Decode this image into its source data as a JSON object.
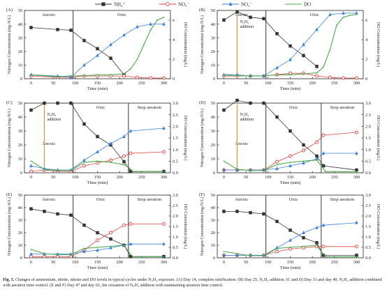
{
  "legend": [
    {
      "label": "NH₄⁺",
      "marker": "square",
      "color": "#333333"
    },
    {
      "label": "NO₂⁻",
      "marker": "circle",
      "color": "#e04040"
    },
    {
      "label": "NO₃⁻",
      "marker": "triangle",
      "color": "#3a7fd8"
    },
    {
      "label": "DO",
      "marker": "line",
      "color": "#4aa84a"
    }
  ],
  "axis_labels": {
    "ylabel_left": "Nitrogen Concentration (mg-N/L)",
    "ylabel_right": "DO Concentration (mg/L)",
    "xlabel": "Time (min)"
  },
  "caption": {
    "label": "Fig. 3.",
    "text": "Changes of ammonium, nitrite, nitrate and DO levels in typical cycles under N₂H₄ exposure. (A) Day 14, complete nitrification. (B) Day 25, N₂H₄ addition. (C and D) Day 31 and day 40, N₂H₄ addition combined with aeration time control. (E and F) Day 47 and day 65, the cessation of N₂H₄ addition with maintaining aeration time control."
  },
  "chart_data": [
    {
      "panel": "(A)",
      "type": "line",
      "xlabel": "Time (min)",
      "xlim": [
        -15,
        315
      ],
      "xticks": [
        0,
        50,
        100,
        150,
        200,
        250,
        300
      ],
      "ylim": [
        0,
        50
      ],
      "yticks": [
        0,
        10,
        20,
        30,
        40,
        50
      ],
      "y2lim": [
        0,
        7
      ],
      "y2ticks": [
        0,
        2,
        4,
        6
      ],
      "phases": [
        {
          "label": "Anoxic",
          "x": [
            -15,
            95
          ]
        },
        {
          "label": "Oxic",
          "x": [
            95,
            315
          ]
        }
      ],
      "series": [
        {
          "name": "NH₄⁺",
          "x": [
            0,
            60,
            90,
            120,
            150,
            180,
            210
          ],
          "y": [
            37.5,
            36,
            35.5,
            28,
            22,
            15,
            3
          ]
        },
        {
          "name": "NO₂⁻",
          "x": [
            0,
            60,
            90,
            120,
            150,
            180,
            210,
            240,
            270,
            300
          ],
          "y": [
            2,
            1,
            1,
            2,
            2,
            2,
            2,
            1,
            0.5,
            0.5
          ]
        },
        {
          "name": "NO₃⁻",
          "x": [
            0,
            60,
            90,
            120,
            150,
            180,
            210,
            240,
            270,
            300
          ],
          "y": [
            3,
            2,
            1,
            10,
            17,
            25,
            32,
            38,
            40,
            40
          ]
        },
        {
          "name": "DO",
          "axis": "right",
          "x": [
            0,
            30,
            60,
            90,
            120,
            150,
            180,
            210,
            225,
            240,
            255,
            270,
            285,
            300
          ],
          "y": [
            0.4,
            0.3,
            0.2,
            0.3,
            0.3,
            0.4,
            0.4,
            0.5,
            1.0,
            2.0,
            3.5,
            5.0,
            6.0,
            6.3
          ]
        }
      ]
    },
    {
      "panel": "(B)",
      "type": "line",
      "xlabel": "Time (min)",
      "xlim": [
        -15,
        315
      ],
      "xticks": [
        0,
        50,
        100,
        150,
        200,
        250,
        300
      ],
      "ylim": [
        0,
        50
      ],
      "yticks": [
        0,
        10,
        20,
        30,
        40,
        50
      ],
      "y2lim": [
        0,
        7
      ],
      "y2ticks": [
        0,
        2,
        4,
        6
      ],
      "phases": [
        {
          "label": "Anoxic",
          "x": [
            -15,
            95
          ]
        },
        {
          "label": "Oxic",
          "x": [
            95,
            315
          ]
        }
      ],
      "annotations": [
        {
          "text": "N₂H₄",
          "x": 30
        },
        {
          "text": "addition",
          "x": 30
        }
      ],
      "series": [
        {
          "name": "NH₄⁺",
          "x": [
            0,
            30,
            60,
            90,
            120,
            150,
            180,
            210
          ],
          "y": [
            43,
            49,
            45,
            44,
            33,
            24,
            17,
            9
          ]
        },
        {
          "name": "NO₂⁻",
          "x": [
            0,
            30,
            60,
            90,
            120,
            150,
            180,
            210,
            240,
            270,
            300
          ],
          "y": [
            2,
            2,
            2,
            2,
            3,
            4,
            4,
            2,
            1,
            0.5,
            0.5
          ]
        },
        {
          "name": "NO₃⁻",
          "x": [
            0,
            30,
            60,
            90,
            120,
            150,
            180,
            210,
            240,
            270,
            300
          ],
          "y": [
            3,
            3,
            2,
            2,
            8,
            14,
            25,
            36,
            47,
            48,
            48
          ]
        },
        {
          "name": "DO",
          "axis": "right",
          "x": [
            0,
            30,
            60,
            90,
            120,
            150,
            180,
            210,
            225,
            240,
            255,
            270,
            285,
            300
          ],
          "y": [
            0.4,
            0.3,
            0.3,
            0.3,
            0.4,
            0.4,
            0.5,
            0.6,
            1.2,
            3.0,
            5.5,
            6.3,
            6.5,
            6.6
          ]
        }
      ]
    },
    {
      "panel": "(C)",
      "type": "line",
      "xlabel": "Time (min)",
      "xlim": [
        -15,
        315
      ],
      "xticks": [
        0,
        50,
        100,
        150,
        200,
        250,
        300
      ],
      "ylim": [
        0,
        50
      ],
      "yticks": [
        0,
        10,
        20,
        30,
        40,
        50
      ],
      "y2lim": [
        0,
        3.0
      ],
      "y2ticks": [
        0.0,
        0.5,
        1.0,
        1.5,
        2.0,
        2.5,
        3.0
      ],
      "phases": [
        {
          "label": "Anoxic",
          "x": [
            -15,
            95
          ]
        },
        {
          "label": "Oxic",
          "x": [
            95,
            220
          ]
        },
        {
          "label": "Stop aeration",
          "x": [
            220,
            315
          ]
        }
      ],
      "annotations": [
        {
          "text": "N₂H₄",
          "x": 30
        },
        {
          "text": "addition",
          "x": 30
        }
      ],
      "series": [
        {
          "name": "NH₄⁺",
          "x": [
            0,
            30,
            60,
            90,
            120,
            150,
            180,
            210,
            225,
            300
          ],
          "y": [
            45,
            50,
            50,
            50,
            35,
            26,
            20,
            8,
            1,
            1
          ]
        },
        {
          "name": "NO₂⁻",
          "x": [
            0,
            30,
            60,
            90,
            120,
            150,
            180,
            210,
            225,
            300
          ],
          "y": [
            1,
            2,
            1,
            1,
            5,
            7,
            9,
            12,
            14,
            15
          ]
        },
        {
          "name": "NO₃⁻",
          "x": [
            0,
            30,
            60,
            90,
            120,
            150,
            180,
            210,
            225,
            300
          ],
          "y": [
            5,
            3,
            2,
            2,
            9,
            15,
            21,
            26,
            30,
            32
          ]
        },
        {
          "name": "DO",
          "axis": "right",
          "x": [
            0,
            30,
            60,
            90,
            120,
            150,
            180,
            210,
            220,
            230,
            300
          ],
          "y": [
            0.5,
            0.15,
            0.1,
            0.1,
            0.45,
            0.5,
            0.45,
            0.35,
            0.25,
            0.05,
            0.05
          ]
        }
      ]
    },
    {
      "panel": "(D)",
      "type": "line",
      "xlabel": "Time (min)",
      "xlim": [
        -15,
        315
      ],
      "xticks": [
        0,
        50,
        100,
        150,
        200,
        250,
        300
      ],
      "ylim": [
        0,
        50
      ],
      "yticks": [
        0,
        10,
        20,
        30,
        40,
        50
      ],
      "y2lim": [
        0,
        3.0
      ],
      "y2ticks": [
        0.0,
        0.5,
        1.0,
        1.5,
        2.0,
        2.5,
        3.0
      ],
      "phases": [
        {
          "label": "Anoxic",
          "x": [
            -15,
            95
          ]
        },
        {
          "label": "Oxic",
          "x": [
            95,
            220
          ]
        },
        {
          "label": "Stop aeration",
          "x": [
            220,
            315
          ]
        }
      ],
      "annotations": [
        {
          "text": "N₂H₄",
          "x": 30
        },
        {
          "text": "addition",
          "x": 30
        }
      ],
      "series": [
        {
          "name": "NH₄⁺",
          "x": [
            0,
            30,
            60,
            90,
            120,
            150,
            180,
            210,
            225,
            300
          ],
          "y": [
            45,
            52,
            50,
            50,
            40,
            30,
            20,
            12,
            5,
            2
          ]
        },
        {
          "name": "NO₂⁻",
          "x": [
            0,
            30,
            60,
            90,
            120,
            150,
            180,
            210,
            225,
            300
          ],
          "y": [
            2,
            2,
            2,
            2,
            8,
            12,
            16,
            22,
            27,
            29
          ]
        },
        {
          "name": "NO₃⁻",
          "x": [
            0,
            30,
            60,
            90,
            120,
            150,
            180,
            210,
            225,
            300
          ],
          "y": [
            2,
            2,
            2,
            2,
            3,
            5,
            7,
            10,
            14,
            14
          ]
        },
        {
          "name": "DO",
          "axis": "right",
          "x": [
            0,
            30,
            60,
            90,
            120,
            150,
            180,
            210,
            220,
            230,
            300
          ],
          "y": [
            0.5,
            0.15,
            0.1,
            0.1,
            0.35,
            0.45,
            0.5,
            0.55,
            0.3,
            0.05,
            0.05
          ]
        }
      ]
    },
    {
      "panel": "(E)",
      "type": "line",
      "xlabel": "Time (min)",
      "xlim": [
        -15,
        315
      ],
      "xticks": [
        0,
        50,
        100,
        150,
        200,
        250,
        300
      ],
      "ylim": [
        0,
        50
      ],
      "yticks": [
        0,
        10,
        20,
        30,
        40,
        50
      ],
      "y2lim": [
        0,
        3.0
      ],
      "y2ticks": [
        0.0,
        0.5,
        1.0,
        1.5,
        2.0,
        2.5,
        3.0
      ],
      "phases": [
        {
          "label": "Anoxic",
          "x": [
            -15,
            95
          ]
        },
        {
          "label": "Oxic",
          "x": [
            95,
            220
          ]
        },
        {
          "label": "Stop aeration",
          "x": [
            220,
            315
          ]
        }
      ],
      "series": [
        {
          "name": "NH₄⁺",
          "x": [
            0,
            30,
            60,
            90,
            120,
            150,
            180,
            210,
            225,
            300
          ],
          "y": [
            39,
            37,
            35,
            34,
            26,
            20,
            15,
            10,
            1,
            1
          ]
        },
        {
          "name": "NO₂⁻",
          "x": [
            0,
            30,
            60,
            90,
            120,
            150,
            180,
            210,
            225,
            300
          ],
          "y": [
            1,
            1,
            1,
            1,
            6,
            14,
            20,
            26,
            27,
            27
          ]
        },
        {
          "name": "NO₃⁻",
          "x": [
            0,
            30,
            60,
            90,
            120,
            150,
            180,
            210,
            225,
            300
          ],
          "y": [
            3,
            3,
            3,
            3,
            5,
            6,
            8,
            10,
            11,
            11
          ]
        },
        {
          "name": "DO",
          "axis": "right",
          "x": [
            0,
            30,
            60,
            90,
            120,
            150,
            180,
            210,
            220,
            230,
            300
          ],
          "y": [
            0.4,
            0.2,
            0.15,
            0.15,
            0.45,
            0.5,
            0.55,
            0.6,
            0.3,
            0.05,
            0.05
          ]
        }
      ]
    },
    {
      "panel": "(F)",
      "type": "line",
      "xlabel": "Time (min)",
      "xlim": [
        -15,
        315
      ],
      "xticks": [
        0,
        50,
        100,
        150,
        200,
        250,
        300
      ],
      "ylim": [
        0,
        50
      ],
      "yticks": [
        0,
        10,
        20,
        30,
        40,
        50
      ],
      "y2lim": [
        0,
        3.0
      ],
      "y2ticks": [
        0.0,
        0.5,
        1.0,
        1.5,
        2.0,
        2.5,
        3.0
      ],
      "phases": [
        {
          "label": "Anoxic",
          "x": [
            -15,
            95
          ]
        },
        {
          "label": "Oxic",
          "x": [
            95,
            220
          ]
        },
        {
          "label": "Stop aeration",
          "x": [
            220,
            315
          ]
        }
      ],
      "series": [
        {
          "name": "NH₄⁺",
          "x": [
            0,
            30,
            60,
            90,
            120,
            150,
            180,
            210,
            225,
            300
          ],
          "y": [
            37,
            37,
            36,
            35,
            29,
            22,
            16,
            12,
            2,
            2
          ]
        },
        {
          "name": "NO₂⁻",
          "x": [
            0,
            30,
            60,
            90,
            120,
            150,
            180,
            210,
            225,
            300
          ],
          "y": [
            2,
            2,
            2,
            2,
            5,
            7,
            8,
            9,
            9,
            9
          ]
        },
        {
          "name": "NO₃⁻",
          "x": [
            0,
            30,
            60,
            90,
            120,
            150,
            180,
            210,
            225,
            300
          ],
          "y": [
            2,
            2,
            2,
            2,
            8,
            14,
            20,
            24,
            26,
            28
          ]
        },
        {
          "name": "DO",
          "axis": "right",
          "x": [
            0,
            30,
            60,
            90,
            120,
            150,
            180,
            210,
            220,
            230,
            300
          ],
          "y": [
            0.3,
            0.2,
            0.1,
            0.1,
            0.45,
            0.5,
            0.55,
            0.6,
            0.3,
            0.05,
            0.05
          ]
        }
      ]
    }
  ]
}
